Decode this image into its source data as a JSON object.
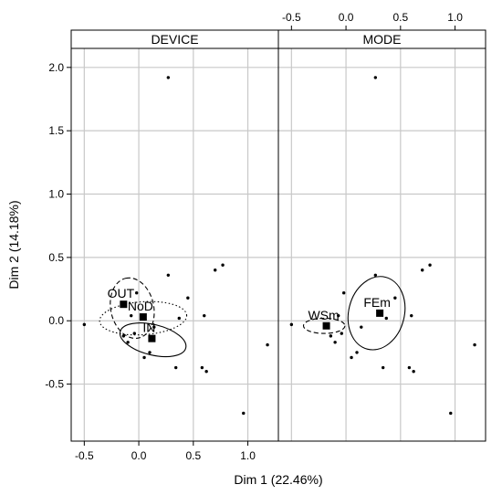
{
  "chart_data": {
    "type": "scatter",
    "xlabel": "Dim 1 (22.46%)",
    "ylabel": "Dim 2 (14.18%)",
    "xlim": [
      -0.62,
      1.28
    ],
    "ylim": [
      -0.95,
      2.15
    ],
    "x_ticks": [
      -0.5,
      0.0,
      0.5,
      1.0
    ],
    "x_tick_labels": [
      "-0.5",
      "0.0",
      "0.5",
      "1.0"
    ],
    "y_ticks": [
      -0.5,
      0.0,
      0.5,
      1.0,
      1.5,
      2.0
    ],
    "y_tick_labels": [
      "-0.5",
      "0.0",
      "0.5",
      "1.0",
      "1.5",
      "2.0"
    ],
    "grid": true,
    "points": [
      {
        "x": -0.5,
        "y": -0.03
      },
      {
        "x": -0.14,
        "y": -0.12
      },
      {
        "x": -0.1,
        "y": -0.17
      },
      {
        "x": -0.07,
        "y": 0.04
      },
      {
        "x": -0.04,
        "y": -0.1
      },
      {
        "x": -0.02,
        "y": 0.22
      },
      {
        "x": 0.05,
        "y": -0.29
      },
      {
        "x": 0.1,
        "y": -0.25
      },
      {
        "x": 0.14,
        "y": -0.05
      },
      {
        "x": 0.27,
        "y": 1.92
      },
      {
        "x": 0.27,
        "y": 0.36
      },
      {
        "x": 0.34,
        "y": -0.37
      },
      {
        "x": 0.37,
        "y": 0.02
      },
      {
        "x": 0.45,
        "y": 0.18
      },
      {
        "x": 0.58,
        "y": -0.37
      },
      {
        "x": 0.6,
        "y": 0.04
      },
      {
        "x": 0.62,
        "y": -0.4
      },
      {
        "x": 0.7,
        "y": 0.4
      },
      {
        "x": 0.77,
        "y": 0.44
      },
      {
        "x": 0.96,
        "y": -0.73
      },
      {
        "x": 1.18,
        "y": -0.19
      }
    ],
    "panels": [
      {
        "title": "DEVICE",
        "categories": [
          {
            "label": "OUT",
            "x": -0.14,
            "y": 0.13,
            "line": "dashed",
            "ellipse": {
              "cx": -0.06,
              "cy": 0.1,
              "rx": 0.28,
              "ry": 0.17,
              "angle": 102
            }
          },
          {
            "label": "NoD",
            "x": 0.04,
            "y": 0.03,
            "line": "dotted",
            "ellipse": {
              "cx": 0.04,
              "cy": 0.02,
              "rx": 0.4,
              "ry": 0.13,
              "angle": 4
            }
          },
          {
            "label": "IN",
            "x": 0.12,
            "y": -0.14,
            "line": "solid",
            "ellipse": {
              "cx": 0.13,
              "cy": -0.15,
              "rx": 0.31,
              "ry": 0.12,
              "angle": -14
            }
          }
        ]
      },
      {
        "title": "MODE",
        "categories": [
          {
            "label": "WSm",
            "x": -0.18,
            "y": -0.04,
            "line": "dashed",
            "ellipse": {
              "cx": -0.2,
              "cy": -0.04,
              "rx": 0.19,
              "ry": 0.06,
              "angle": 0
            }
          },
          {
            "label": "FEm",
            "x": 0.31,
            "y": 0.06,
            "line": "solid",
            "ellipse": {
              "cx": 0.28,
              "cy": 0.06,
              "rx": 0.34,
              "ry": 0.22,
              "angle": 76
            }
          }
        ]
      }
    ]
  }
}
